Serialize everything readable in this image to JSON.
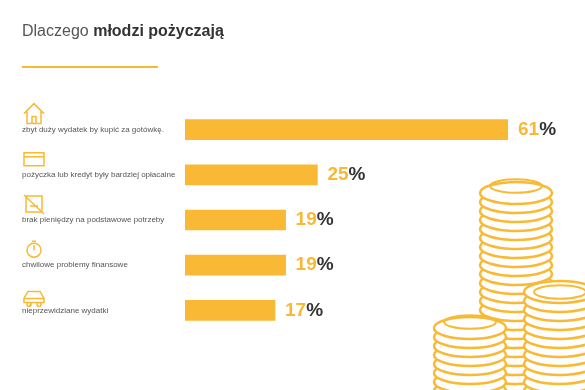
{
  "chart_data": {
    "type": "bar",
    "title": "Dlaczego młodzi pożyczają",
    "orientation": "horizontal",
    "categories": [
      "zbyt duży wydatek by kupić za gotówkę.",
      "pożyczka lub kredyt były bardziej opłacalne",
      "brak pieniędzy na podstawowe potrzeby",
      "chwilowe problemy finansowe",
      "nieprzewidziane wydatki"
    ],
    "values": [
      61,
      25,
      19,
      19,
      17
    ],
    "value_labels": [
      "61%",
      "25%",
      "19%",
      "19%",
      "17%"
    ],
    "color": "#f9b934",
    "xlim": [
      0,
      61
    ],
    "data_labels": true,
    "grid": false,
    "tick_labels": "y"
  }
}
